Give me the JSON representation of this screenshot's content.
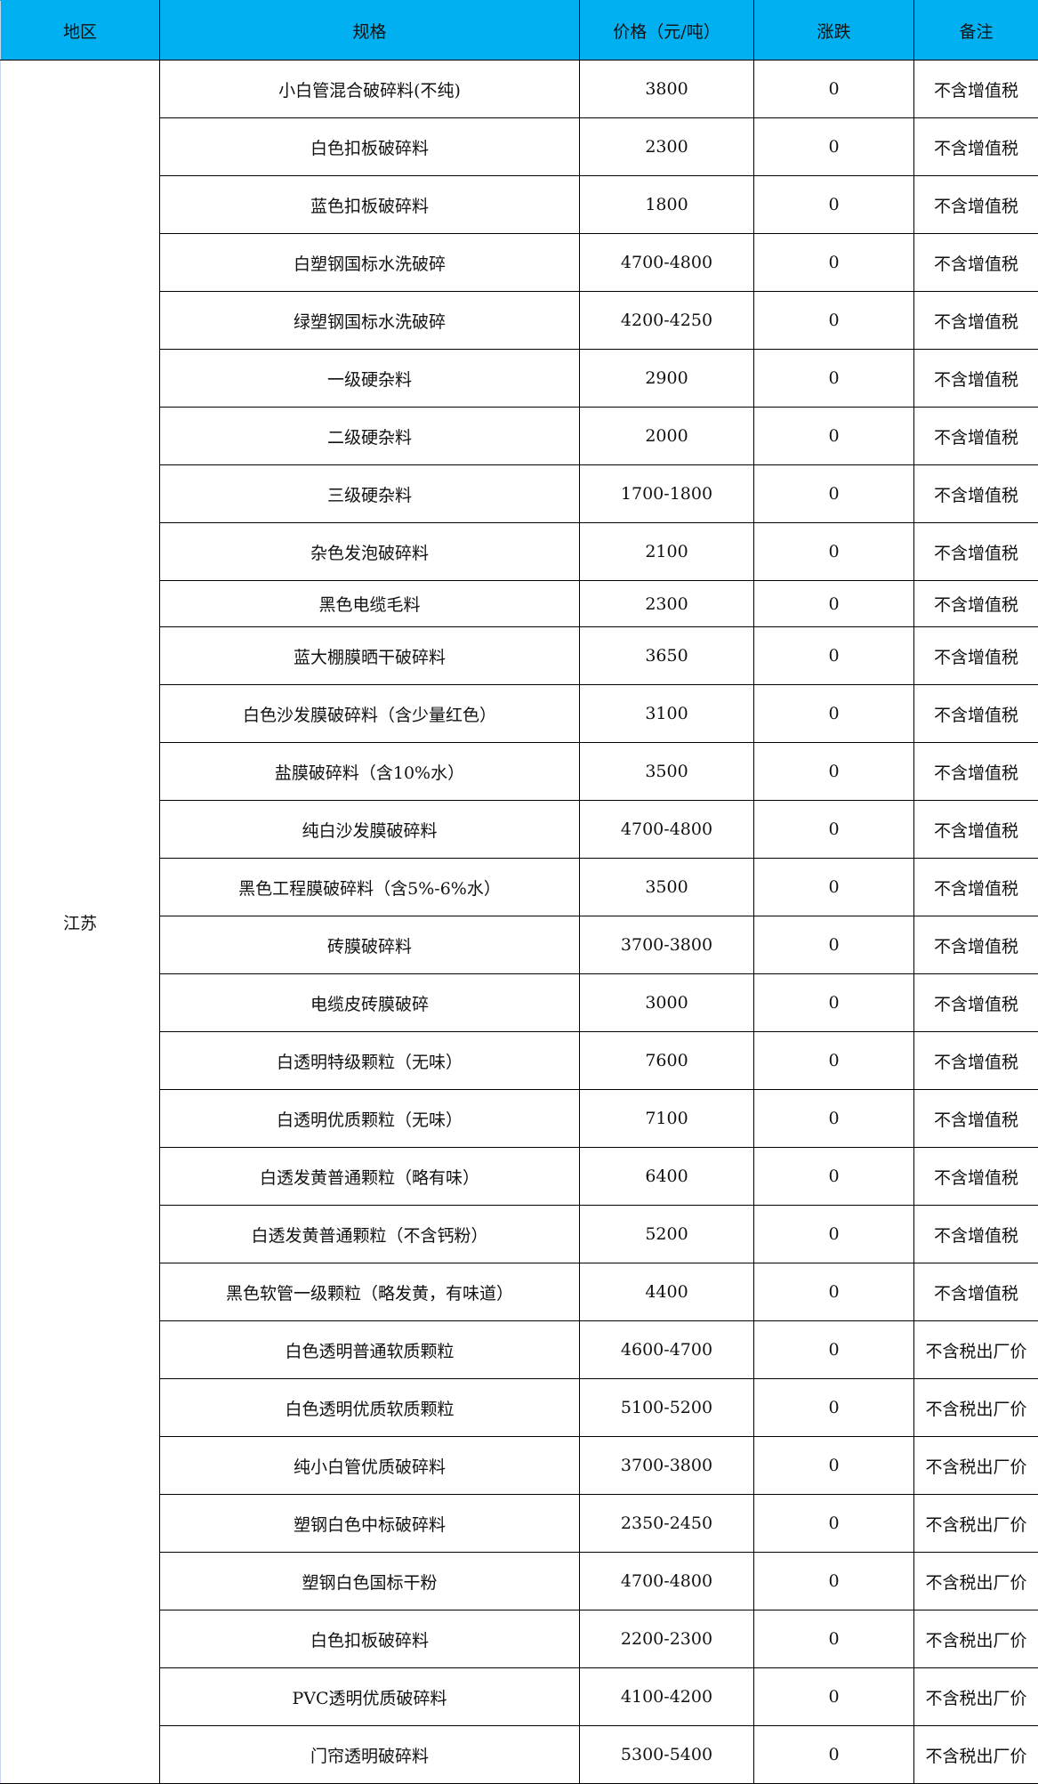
{
  "header": {
    "region": "地区",
    "spec": "规格",
    "price": "价格（元/吨）",
    "change": "涨跌",
    "note": "备注"
  },
  "region": "江苏",
  "rows": [
    {
      "spec": "小白管混合破碎料(不纯)",
      "price": "3800",
      "change": "0",
      "note": "不含增值税"
    },
    {
      "spec": "白色扣板破碎料",
      "price": "2300",
      "change": "0",
      "note": "不含增值税"
    },
    {
      "spec": "蓝色扣板破碎料",
      "price": "1800",
      "change": "0",
      "note": "不含增值税"
    },
    {
      "spec": "白塑钢国标水洗破碎",
      "price": "4700-4800",
      "change": "0",
      "note": "不含增值税"
    },
    {
      "spec": "绿塑钢国标水洗破碎",
      "price": "4200-4250",
      "change": "0",
      "note": "不含增值税"
    },
    {
      "spec": "一级硬杂料",
      "price": "2900",
      "change": "0",
      "note": "不含增值税"
    },
    {
      "spec": "二级硬杂料",
      "price": "2000",
      "change": "0",
      "note": "不含增值税"
    },
    {
      "spec": "三级硬杂料",
      "price": "1700-1800",
      "change": "0",
      "note": "不含增值税"
    },
    {
      "spec": "杂色发泡破碎料",
      "price": "2100",
      "change": "0",
      "note": "不含增值税"
    },
    {
      "spec": "黑色电缆毛料",
      "price": "2300",
      "change": "0",
      "note": "不含增值税"
    },
    {
      "spec": "蓝大棚膜晒干破碎料",
      "price": "3650",
      "change": "0",
      "note": "不含增值税"
    },
    {
      "spec": "白色沙发膜破碎料（含少量红色）",
      "price": "3100",
      "change": "0",
      "note": "不含增值税"
    },
    {
      "spec": "盐膜破碎料（含10%水）",
      "price": "3500",
      "change": "0",
      "note": "不含增值税"
    },
    {
      "spec": "纯白沙发膜破碎料",
      "price": "4700-4800",
      "change": "0",
      "note": "不含增值税"
    },
    {
      "spec": "黑色工程膜破碎料（含5%-6%水）",
      "price": "3500",
      "change": "0",
      "note": "不含增值税"
    },
    {
      "spec": "砖膜破碎料",
      "price": "3700-3800",
      "change": "0",
      "note": "不含增值税"
    },
    {
      "spec": "电缆皮砖膜破碎",
      "price": "3000",
      "change": "0",
      "note": "不含增值税"
    },
    {
      "spec": "白透明特级颗粒（无味）",
      "price": "7600",
      "change": "0",
      "note": "不含增值税"
    },
    {
      "spec": "白透明优质颗粒（无味）",
      "price": "7100",
      "change": "0",
      "note": "不含增值税"
    },
    {
      "spec": "白透发黄普通颗粒（略有味）",
      "price": "6400",
      "change": "0",
      "note": "不含增值税"
    },
    {
      "spec": "白透发黄普通颗粒（不含钙粉）",
      "price": "5200",
      "change": "0",
      "note": "不含增值税"
    },
    {
      "spec": "黑色软管一级颗粒（略发黄，有味道）",
      "price": "4400",
      "change": "0",
      "note": "不含增值税"
    },
    {
      "spec": "白色透明普通软质颗粒",
      "price": "4600-4700",
      "change": "0",
      "note": "不含税出厂价"
    },
    {
      "spec": "白色透明优质软质颗粒",
      "price": "5100-5200",
      "change": "0",
      "note": "不含税出厂价"
    },
    {
      "spec": "纯小白管优质破碎料",
      "price": "3700-3800",
      "change": "0",
      "note": "不含税出厂价"
    },
    {
      "spec": "塑钢白色中标破碎料",
      "price": "2350-2450",
      "change": "0",
      "note": "不含税出厂价"
    },
    {
      "spec": "塑钢白色国标干粉",
      "price": "4700-4800",
      "change": "0",
      "note": "不含税出厂价"
    },
    {
      "spec": "白色扣板破碎料",
      "price": "2200-2300",
      "change": "0",
      "note": "不含税出厂价"
    },
    {
      "spec": "PVC透明优质破碎料",
      "price": "4100-4200",
      "change": "0",
      "note": "不含税出厂价"
    },
    {
      "spec": "门帘透明破碎料",
      "price": "5300-5400",
      "change": "0",
      "note": "不含税出厂价"
    }
  ],
  "colors": {
    "header_bg": "#00b0f0"
  }
}
